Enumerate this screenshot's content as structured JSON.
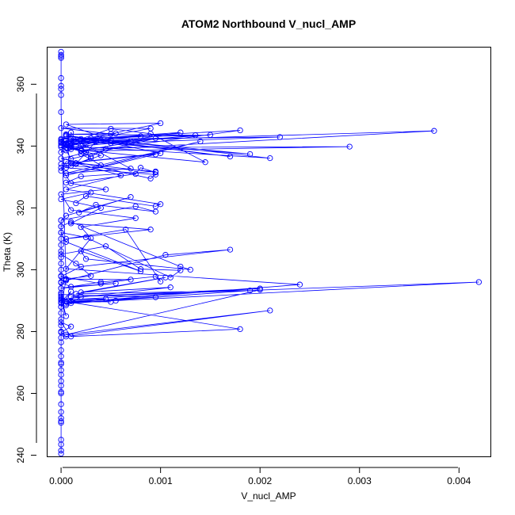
{
  "chart_data": {
    "type": "line",
    "title": "ATOM2 Northbound V_nucl_AMP",
    "xlabel": "V_nucl_AMP",
    "ylabel": "Theta (K)",
    "xlim": [
      -0.00014,
      0.00432
    ],
    "ylim": [
      239.5,
      372.0
    ],
    "xticks": [
      0.0,
      0.001,
      0.002,
      0.003,
      0.004
    ],
    "xtick_labels": [
      "0.000",
      "0.001",
      "0.002",
      "0.003",
      "0.004"
    ],
    "yticks": [
      240,
      260,
      280,
      300,
      320,
      340,
      360
    ],
    "ytick_labels": [
      "240",
      "260",
      "280",
      "300",
      "320",
      "340",
      "360"
    ],
    "grid": false,
    "legend": "none",
    "series_color": "#0000ff",
    "series": [
      {
        "x": [
          0,
          0,
          0,
          0,
          0,
          0,
          0,
          0,
          0,
          0,
          0,
          0,
          0,
          0,
          0,
          0,
          0,
          0,
          0,
          0,
          0,
          0,
          0,
          0,
          0,
          0,
          0,
          0,
          0,
          0,
          0,
          0,
          0,
          0,
          0,
          0,
          0,
          0,
          0,
          0,
          5e-05,
          0.0007,
          0.00018,
          0.00035,
          0.00095,
          0.00075,
          0,
          0,
          0.0001,
          0.0012,
          0.0013,
          0.00025,
          0.0002,
          0.0008,
          5e-05,
          0,
          0.00025,
          0.0011,
          0.0012,
          0.0008,
          0.00045,
          0,
          0.00015,
          0.0003,
          5e-05,
          0.0007,
          0.0004,
          0,
          0.0002,
          0.0017,
          0.00105,
          5e-05,
          0,
          0.0001,
          0.00055,
          0,
          0.0004,
          0.00095,
          0.001,
          0.00065,
          5e-05,
          0.0009,
          0.0001,
          0.0004,
          0,
          0.0003,
          0.00015,
          0.00025,
          0.00095,
          0.001,
          5e-05,
          0.0006,
          0.00015,
          0,
          0.0001,
          0.00075,
          0.0008,
          0.00095,
          5e-05,
          0,
          0.0001,
          0.0004,
          0.0002,
          0,
          0.0009,
          0.00095,
          5e-05,
          0.0004,
          5e-05,
          0.00025,
          0.0001,
          0,
          0.0001,
          0.00095,
          0.0002,
          0,
          5e-05,
          0.0019,
          5e-05,
          0.0017,
          0.0002,
          0.0018,
          0.00045,
          0.0003,
          5e-05,
          0.0008,
          0,
          0.00055,
          5e-05,
          0.00135,
          0.0002,
          0,
          0.0001,
          0.00145,
          0.0009,
          0.0005,
          0,
          0.0021,
          0.0003,
          0.0001,
          5e-05,
          0.0029,
          0.0002,
          0,
          0.0005,
          0.0022,
          0.0001,
          0.00015,
          0.00375,
          0.0002,
          5e-05,
          0.0015,
          0,
          0.0007,
          5e-05,
          0.0009,
          0,
          0.0005,
          0.0001,
          0.001,
          5e-05,
          0.0005,
          0,
          0.0001,
          0.0003,
          0.00015,
          0.00035,
          0,
          5e-05,
          0.0004,
          5e-05,
          0.0007,
          5e-05,
          0.0014,
          5e-05,
          0.00095,
          0,
          0.001,
          0.0005,
          0.0012,
          5e-05,
          0.0001,
          0.00095,
          0.0002,
          5e-05,
          0.00045,
          0,
          0.0001,
          0.00075,
          0.0002,
          0.0003,
          5e-05,
          0.0024,
          0,
          0.00055,
          0.0042,
          0.0001,
          0.002,
          0,
          0.00045,
          5e-05,
          0.0019,
          0.00015,
          0.00105,
          0.0002,
          0.0011,
          0,
          0.0002,
          5e-05,
          0,
          0.00095,
          0.0001,
          0.0005,
          5e-05,
          0.0018,
          0.0001,
          0,
          0.0001,
          0,
          5e-05,
          0.0021,
          5e-05,
          0.002,
          0.0001,
          0,
          5e-05,
          0,
          0.0001,
          0,
          5e-05,
          0,
          0,
          0,
          0,
          0,
          0,
          0,
          0,
          0
        ],
        "y": [
          240.5,
          241.5,
          245,
          243.5,
          251,
          252,
          250.5,
          254,
          256.5,
          260,
          260.5,
          262.5,
          264,
          266,
          267.5,
          269.5,
          270,
          272,
          274,
          276.5,
          278,
          280,
          282,
          284,
          286,
          288,
          291,
          292.5,
          294,
          296,
          298,
          300,
          302,
          304,
          306,
          308,
          310,
          312,
          314,
          316,
          317.5,
          323.5,
          318.5,
          321,
          318.8,
          320.5,
          316,
          314,
          315.5,
          301,
          300,
          303.5,
          306,
          299.5,
          309,
          312,
          310.5,
          297.5,
          299.8,
          300.2,
          307.6,
          305,
          302,
          298,
          297,
          296.8,
          295.5,
          297.8,
          301,
          306.5,
          304.8,
          296.5,
          295.8,
          294.5,
          295.6,
          294,
          296,
          297.8,
          296.2,
          313,
          310,
          313,
          315,
          320,
          322.8,
          325,
          321.5,
          323.8,
          320.5,
          321.2,
          326,
          330.5,
          334.5,
          333,
          328,
          331,
          333,
          331.5,
          335,
          332,
          334.5,
          333.8,
          337.5,
          336,
          329.5,
          330.8,
          333,
          337,
          339.5,
          338,
          340,
          341.5,
          335.8,
          342.5,
          338.5,
          340.2,
          341.8,
          337.4,
          343.2,
          336.6,
          342.3,
          345.1,
          339.1,
          336.6,
          340.7,
          343.2,
          341.3,
          344.1,
          343.8,
          343.5,
          340,
          342,
          339,
          334.8,
          344,
          345.6,
          340.2,
          336.1,
          342.5,
          340,
          339.5,
          339.8,
          338.4,
          341,
          341,
          342.9,
          342.2,
          341.5,
          344.9,
          338.6,
          340.4,
          343.6,
          342.3,
          341.6,
          340.8,
          345.7,
          345.8,
          343.9,
          341.1,
          347.4,
          347,
          341.9,
          338,
          344.4,
          336.1,
          334.2,
          341.5,
          339.7,
          338.6,
          341.8,
          343.5,
          332.7,
          331.2,
          341.5,
          330.5,
          337.3,
          334.2,
          337.7,
          341,
          344.4,
          341.8,
          333.6,
          331.8,
          330.2,
          328.2,
          326,
          324.4,
          319.3,
          316.7,
          313.8,
          310.2,
          300.3,
          295.2,
          289.2,
          290,
          296,
          291.2,
          293.9,
          290.1,
          290.6,
          289,
          293.3,
          292.2,
          297.5,
          292.7,
          294.3,
          290.4,
          291.2,
          288.5,
          292,
          291.1,
          289.8,
          289.6,
          289.7,
          280.8,
          278.4,
          283,
          281.6,
          279.7,
          278.4,
          286.8,
          279,
          293.5,
          289.2,
          291.4,
          285,
          289.5,
          293,
          288,
          296.8,
          351,
          356.5,
          358.5,
          359.5,
          362,
          368.5,
          369.5,
          370.5,
          369
        ]
      }
    ]
  }
}
